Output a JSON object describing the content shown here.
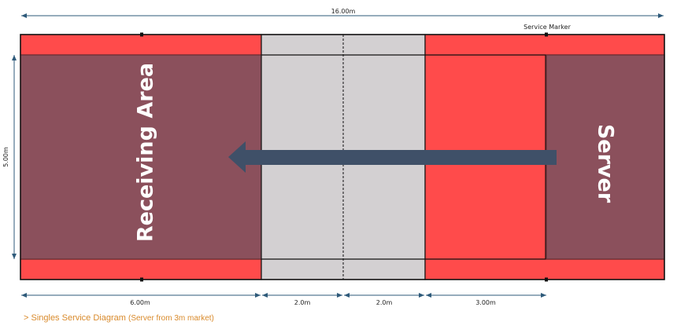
{
  "colors": {
    "service_box": "#ff4b4b",
    "receiving": "#8b505c",
    "kitchen": "#d3d0d2",
    "arrow": "#3f5068",
    "caption": "#d98a2b"
  },
  "labels": {
    "receiving_area": "Receiving Area",
    "server": "Server",
    "service_marker": "Service Marker"
  },
  "dimensions": {
    "total_length": "16.00m",
    "width": "5.00m",
    "back_segment": "6.00m",
    "kitchen_left": "2.0m",
    "kitchen_right": "2.0m",
    "service_distance": "3.00m"
  },
  "caption": {
    "prefix": "> Singles Service Diagram",
    "sub": "(Server from 3m market)"
  }
}
